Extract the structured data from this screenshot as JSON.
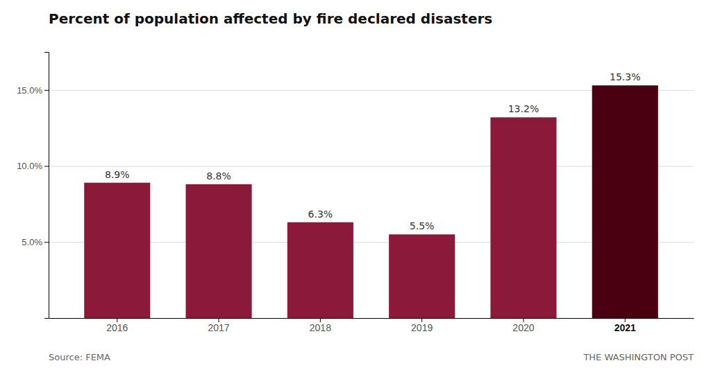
{
  "chart_data": {
    "type": "bar",
    "title": "Percent of population affected by fire declared disasters",
    "categories": [
      "2016",
      "2017",
      "2018",
      "2019",
      "2020",
      "2021"
    ],
    "values": [
      8.9,
      8.8,
      6.3,
      5.5,
      13.2,
      15.3
    ],
    "value_labels": [
      "8.9%",
      "8.8%",
      "6.3%",
      "5.5%",
      "13.2%",
      "15.3%"
    ],
    "colors": [
      "#8B1A3A",
      "#8B1A3A",
      "#8B1A3A",
      "#8B1A3A",
      "#8B1A3A",
      "#4A0010"
    ],
    "data_labels": true,
    "ylim": [
      0,
      17.5
    ],
    "yticks": [
      {
        "value": 5.0,
        "label": "5.0%"
      },
      {
        "value": 10.0,
        "label": "10.0%"
      },
      {
        "value": 15.0,
        "label": "15.0%"
      }
    ],
    "grid": true,
    "annotations": [
      "Source: FEMA",
      "THE WASHINGTON POST"
    ]
  }
}
